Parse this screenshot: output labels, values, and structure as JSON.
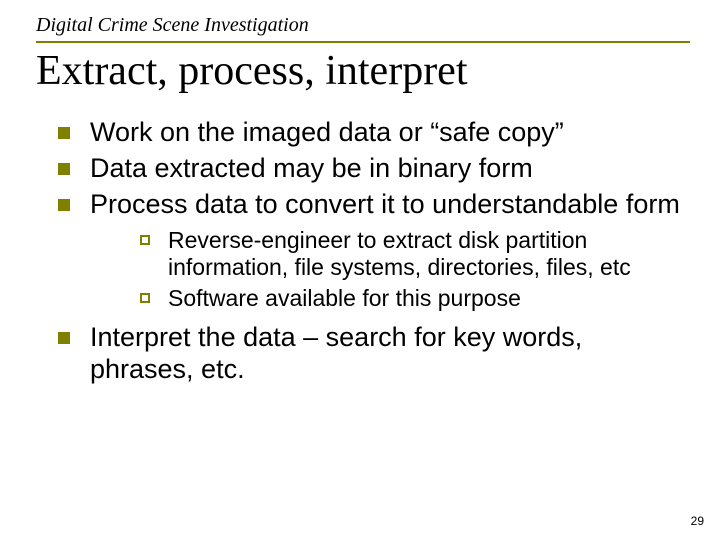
{
  "colors": {
    "accent": "#808000",
    "text": "#000000",
    "background": "#ffffff"
  },
  "typography": {
    "header_font": "Garamond",
    "body_font": "Arial",
    "header_italic": true,
    "header_size_pt": 20,
    "title_size_pt": 42,
    "l1_size_pt": 27,
    "l2_size_pt": 23,
    "pageno_size_pt": 12
  },
  "header": "Digital Crime Scene Investigation",
  "title": "Extract, process, interpret",
  "bullets": {
    "b0": "Work on the imaged data or “safe copy”",
    "b1": "Data extracted may be in binary form",
    "b2": "Process data to convert it to understandable form",
    "b2_sub": {
      "s0": "Reverse-engineer to extract disk partition information, file systems, directories, files, etc",
      "s1": "Software available for this purpose"
    },
    "b3": "Interpret the data – search for key words, phrases, etc."
  },
  "page_number": "29"
}
